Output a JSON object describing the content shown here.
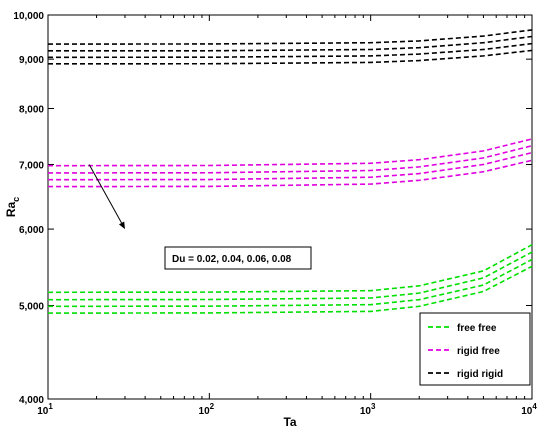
{
  "chart_data": {
    "type": "line",
    "title": "",
    "xlabel": "Ta",
    "ylabel_main": "Ra",
    "ylabel_sub": "c",
    "x_scale": "log",
    "y_scale": "log",
    "xlim": [
      10,
      10000
    ],
    "ylim": [
      4000,
      10000
    ],
    "x_ticks": [
      {
        "value": 10,
        "base": "10",
        "exp": "1"
      },
      {
        "value": 100,
        "base": "10",
        "exp": "2"
      },
      {
        "value": 1000,
        "base": "10",
        "exp": "3"
      },
      {
        "value": 10000,
        "base": "10",
        "exp": "4"
      }
    ],
    "y_ticks": [
      {
        "value": 4000,
        "label": "4,000"
      },
      {
        "value": 5000,
        "label": "5,000"
      },
      {
        "value": 6000,
        "label": "6,000"
      },
      {
        "value": 7000,
        "label": "7,000"
      },
      {
        "value": 8000,
        "label": "8,000"
      },
      {
        "value": 9000,
        "label": "9,000"
      },
      {
        "value": 10000,
        "label": "10,000"
      }
    ],
    "x": [
      10,
      100,
      1000,
      2000,
      5000,
      10000
    ],
    "series": [
      {
        "name": "free free",
        "color": "#00e000",
        "values": [
          5160,
          5162,
          5180,
          5240,
          5430,
          5780
        ]
      },
      {
        "name": "",
        "color": "#00e000",
        "values": [
          5070,
          5072,
          5090,
          5150,
          5340,
          5680
        ]
      },
      {
        "name": "",
        "color": "#00e000",
        "values": [
          4990,
          4992,
          5010,
          5070,
          5250,
          5580
        ]
      },
      {
        "name": "",
        "color": "#00e000",
        "values": [
          4910,
          4912,
          4930,
          4990,
          5170,
          5490
        ]
      },
      {
        "name": "rigid free",
        "color": "#e000e0",
        "values": [
          6980,
          6983,
          7020,
          7080,
          7230,
          7440
        ]
      },
      {
        "name": "",
        "color": "#e000e0",
        "values": [
          6860,
          6863,
          6900,
          6960,
          7110,
          7320
        ]
      },
      {
        "name": "",
        "color": "#e000e0",
        "values": [
          6750,
          6753,
          6790,
          6850,
          7000,
          7200
        ]
      },
      {
        "name": "",
        "color": "#e000e0",
        "values": [
          6640,
          6643,
          6680,
          6740,
          6880,
          7070
        ]
      },
      {
        "name": "rigid rigid",
        "color": "#000000",
        "values": [
          9330,
          9332,
          9360,
          9400,
          9510,
          9650
        ]
      },
      {
        "name": "",
        "color": "#000000",
        "values": [
          9180,
          9182,
          9210,
          9250,
          9360,
          9500
        ]
      },
      {
        "name": "",
        "color": "#000000",
        "values": [
          9040,
          9042,
          9070,
          9110,
          9210,
          9340
        ]
      },
      {
        "name": "",
        "color": "#000000",
        "values": [
          8900,
          8902,
          8930,
          8970,
          9070,
          9190
        ]
      }
    ],
    "legend": {
      "position": "bottom-right",
      "entries": [
        {
          "label": "free free",
          "color": "#00e000"
        },
        {
          "label": "rigid free",
          "color": "#e000e0"
        },
        {
          "label": "rigid rigid",
          "color": "#000000"
        }
      ]
    },
    "annotation": {
      "text": "Du = 0.02, 0.04, 0.06, 0.08",
      "arrow_from": [
        18,
        7000
      ],
      "arrow_to": [
        30,
        6000
      ]
    },
    "grid": false
  }
}
